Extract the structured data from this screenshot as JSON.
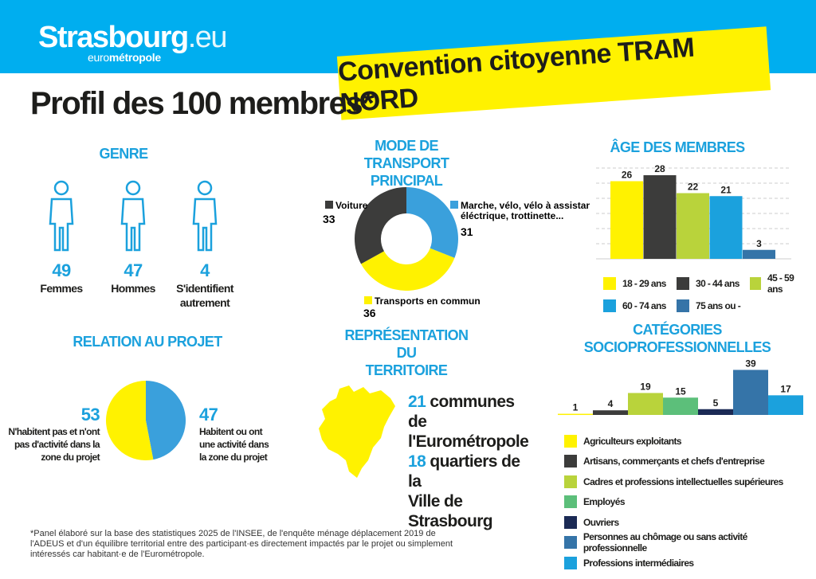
{
  "header": {
    "logo_main": "Strasbourg",
    "logo_suffix": ".eu",
    "logo_sub_light": "euro",
    "logo_sub_bold": "métropole",
    "banner": "Convention citoyenne TRAM NORD"
  },
  "title": "Profil des 100 membres*",
  "genre": {
    "title": "GENRE",
    "items": [
      {
        "value": "49",
        "label": "Femmes"
      },
      {
        "value": "47",
        "label": "Hommes"
      },
      {
        "value": "4",
        "label": "S'identifient autrement"
      }
    ]
  },
  "relation": {
    "title": "RELATION AU PROJET",
    "left": {
      "value": "53",
      "label": "N'habitent pas et n'ont pas d'activité dans la zone du projet"
    },
    "right": {
      "value": "47",
      "label": "Habitent ou ont une activité dans la zone du projet"
    }
  },
  "transport": {
    "title_1": "MODE DE TRANSPORT",
    "title_2": "PRINCIPAL"
  },
  "territoire": {
    "title_1": "REPRÉSENTATION DU",
    "title_2": "TERRITOIRE",
    "communes_n": "21",
    "communes_1": "communes",
    "communes_2": "de l'Eurométropole",
    "quartiers_n": "18",
    "quartiers_1": "quartiers de la",
    "quartiers_2": "Ville de Strasbourg"
  },
  "age": {
    "title": "ÂGE DES MEMBRES"
  },
  "csp": {
    "title_1": "CATÉGORIES",
    "title_2": "SOCIOPROFESSIONNELLES"
  },
  "footnote": "*Panel élaboré sur la base des statistiques 2025 de l'INSEE, de l'enquête ménage déplacement 2019 de l'ADEUS et d'un équilibre territorial entre des participant·es directement impactés par le projet ou simplement intéressés car habitant·e de l'Eurométropole.",
  "colors": {
    "blue": "#00aeef",
    "yellow": "#fff200",
    "dark": "#3c3c3b"
  },
  "chart_data": [
    {
      "type": "pie",
      "title": "RELATION AU PROJET",
      "categories": [
        "N'habitent pas et n'ont pas d'activité dans la zone du projet",
        "Habitent ou ont une activité dans la zone du projet"
      ],
      "values": [
        53,
        47
      ],
      "colors": [
        "#fff200",
        "#3aa0dc"
      ]
    },
    {
      "type": "pie",
      "title": "MODE DE TRANSPORT PRINCIPAL",
      "donut": true,
      "categories": [
        "Marche, vélo, vélo à assistance éléctrique, trottinette...",
        "Transports en commun",
        "Voiture"
      ],
      "values": [
        31,
        36,
        33
      ],
      "colors": [
        "#3aa0dc",
        "#fff200",
        "#3c3c3b"
      ]
    },
    {
      "type": "bar",
      "title": "ÂGE DES MEMBRES",
      "categories": [
        "18 - 29 ans",
        "30 - 44 ans",
        "45 - 59 ans",
        "60 - 74 ans",
        "75 ans ou -"
      ],
      "values": [
        26,
        28,
        22,
        21,
        3
      ],
      "colors": [
        "#fff200",
        "#3c3c3b",
        "#b9d33b",
        "#1ba1dd",
        "#3574a8"
      ],
      "grid": true,
      "legend": "bottom"
    },
    {
      "type": "bar",
      "title": "CATÉGORIES SOCIOPROFESSIONNELLES",
      "categories": [
        "Agriculteurs exploitants",
        "Artisans, commerçants et chefs d'entreprise",
        "Cadres et professions intellectuelles supérieures",
        "Employés",
        "Ouvriers",
        "Personnes au chômage ou sans activité professionnelle",
        "Professions intermédiaires"
      ],
      "values": [
        1,
        4,
        19,
        15,
        5,
        39,
        17
      ],
      "colors": [
        "#fff200",
        "#3c3c3b",
        "#b9d33b",
        "#5cbf7a",
        "#1b2a55",
        "#3574a8",
        "#1ba1dd"
      ],
      "legend": "bottom"
    }
  ]
}
